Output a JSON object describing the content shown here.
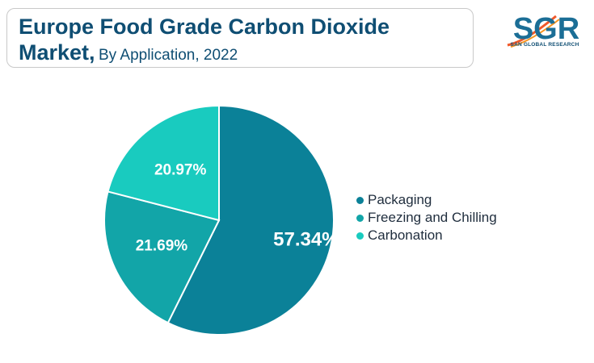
{
  "header": {
    "title_line1": "Europe Food Grade Carbon Dioxide",
    "title_line2_bold": "Market,",
    "subtitle": "By Application, 2022"
  },
  "logo": {
    "text": "SGR",
    "subtext": "SAN GLOBAL RESEARCH",
    "colors": {
      "primary": "#1b6e96",
      "accent": "#f0592a"
    }
  },
  "chart_data": {
    "type": "pie",
    "title": "Europe Food Grade Carbon Dioxide Market, By Application, 2022",
    "slices": [
      {
        "label": "Packaging",
        "value": 57.34,
        "display": "57.34%",
        "color": "#0b8198"
      },
      {
        "label": "Freezing and Chilling",
        "value": 21.69,
        "display": "21.69%",
        "color": "#12a5a8"
      },
      {
        "label": "Carbonation",
        "value": 20.97,
        "display": "20.97%",
        "color": "#19cbbf"
      }
    ],
    "legend_position": "right",
    "start_angle": "12 o'clock",
    "direction": "clockwise"
  }
}
